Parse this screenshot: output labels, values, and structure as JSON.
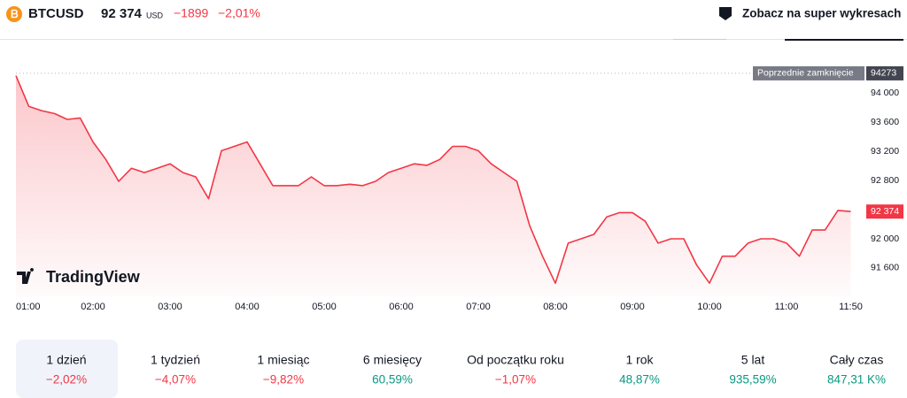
{
  "header": {
    "symbol": "BTCUSD",
    "price": "92 374",
    "currency": "USD",
    "change": "−1899",
    "change_pct": "−2,01%",
    "button": "Zobacz na super wykresach"
  },
  "logo": "TradingView",
  "chart_data": {
    "type": "line",
    "color": "#f23645",
    "values": [
      94240,
      93820,
      93760,
      93720,
      93640,
      93660,
      93330,
      93090,
      92790,
      92970,
      92910,
      92970,
      93030,
      92910,
      92850,
      92550,
      93210,
      93270,
      93330,
      93030,
      92730,
      92730,
      92730,
      92850,
      92730,
      92730,
      92750,
      92730,
      92790,
      92910,
      92970,
      93030,
      93010,
      93090,
      93270,
      93270,
      93210,
      93030,
      92910,
      92790,
      92180,
      91760,
      91390,
      91940,
      92000,
      92060,
      92300,
      92360,
      92360,
      92240,
      91940,
      92000,
      92000,
      91640,
      91390,
      91760,
      91760,
      91940,
      92000,
      92000,
      91940,
      91760,
      92120,
      92120,
      92390,
      92374
    ],
    "xlim": [
      0,
      66
    ],
    "xticks": [
      {
        "value": 0,
        "label": "01:00"
      },
      {
        "value": 6,
        "label": "02:00"
      },
      {
        "value": 12,
        "label": "03:00"
      },
      {
        "value": 18,
        "label": "04:00"
      },
      {
        "value": 24,
        "label": "05:00"
      },
      {
        "value": 30,
        "label": "06:00"
      },
      {
        "value": 36,
        "label": "07:00"
      },
      {
        "value": 42,
        "label": "08:00"
      },
      {
        "value": 48,
        "label": "09:00"
      },
      {
        "value": 54,
        "label": "10:00"
      },
      {
        "value": 60,
        "label": "11:00"
      },
      {
        "value": 65,
        "label": "11:50"
      }
    ],
    "ylim": [
      91210,
      94430
    ],
    "yticks": [
      {
        "value": 91600,
        "label": "91 600"
      },
      {
        "value": 92000,
        "label": "92 000"
      },
      {
        "value": 92800,
        "label": "92 800"
      },
      {
        "value": 93200,
        "label": "93 200"
      },
      {
        "value": 93600,
        "label": "93 600"
      },
      {
        "value": 94000,
        "label": "94 000"
      }
    ],
    "previous_close": {
      "label": "Poprzednie zamknięcie",
      "value": 94273
    },
    "last_price": {
      "value": 92374,
      "label": "92 374"
    }
  },
  "periods": [
    {
      "label": "1 dzień",
      "value": "−2,02%",
      "color": "#f23645",
      "selected": true
    },
    {
      "label": "1 tydzień",
      "value": "−4,07%",
      "color": "#f23645"
    },
    {
      "label": "1 miesiąc",
      "value": "−9,82%",
      "color": "#f23645"
    },
    {
      "label": "6 miesięcy",
      "value": "60,59%",
      "color": "#089981"
    },
    {
      "label": "Od początku roku",
      "value": "−1,07%",
      "color": "#f23645"
    },
    {
      "label": "1 rok",
      "value": "48,87%",
      "color": "#089981"
    },
    {
      "label": "5 lat",
      "value": "935,59%",
      "color": "#089981"
    },
    {
      "label": "Cały czas",
      "value": "847,31 K%",
      "color": "#089981"
    }
  ]
}
